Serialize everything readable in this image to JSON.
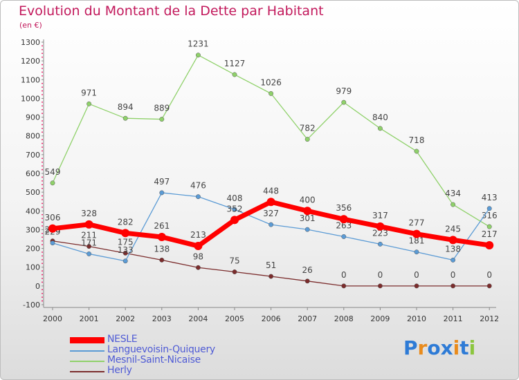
{
  "title": "Evolution du Montant de la Dette par Habitant",
  "subtitle": "(en €)",
  "logo": {
    "letters": [
      "P",
      "r",
      "o",
      "x",
      "i",
      "t",
      "i"
    ],
    "colors": [
      "#2e7bd6",
      "#e98b1c",
      "#2e7bd6",
      "#2e7bd6",
      "#e98b1c",
      "#2e7bd6",
      "#8cc63f"
    ]
  },
  "chart_data": {
    "type": "line",
    "categories": [
      "2000",
      "2001",
      "2002",
      "2003",
      "2004",
      "2005",
      "2006",
      "2007",
      "2008",
      "2009",
      "2010",
      "2011",
      "2012"
    ],
    "ylim": [
      -100,
      1300
    ],
    "yticks": [
      -100,
      0,
      100,
      200,
      300,
      400,
      500,
      600,
      700,
      800,
      900,
      1000,
      1100,
      1200,
      1300
    ],
    "grid": false,
    "legend_position": "bottom-left",
    "series": [
      {
        "name": "NESLE",
        "color": "#ff0000",
        "values": [
          306,
          328,
          282,
          261,
          213,
          352,
          448,
          400,
          356,
          317,
          277,
          245,
          217
        ]
      },
      {
        "name": "Languevoisin-Quiquery",
        "color": "#5b9bd5",
        "values": [
          229,
          171,
          133,
          497,
          476,
          408,
          327,
          301,
          263,
          223,
          181,
          138,
          413
        ]
      },
      {
        "name": "Mesnil-Saint-Nicaise",
        "color": "#8fd16a",
        "values": [
          549,
          971,
          894,
          889,
          1231,
          1127,
          1026,
          782,
          979,
          840,
          718,
          434,
          316
        ]
      },
      {
        "name": "Herly",
        "color": "#7b2c2c",
        "values": [
          240,
          211,
          175,
          138,
          98,
          75,
          51,
          26,
          0,
          0,
          0,
          0,
          0
        ]
      }
    ]
  }
}
